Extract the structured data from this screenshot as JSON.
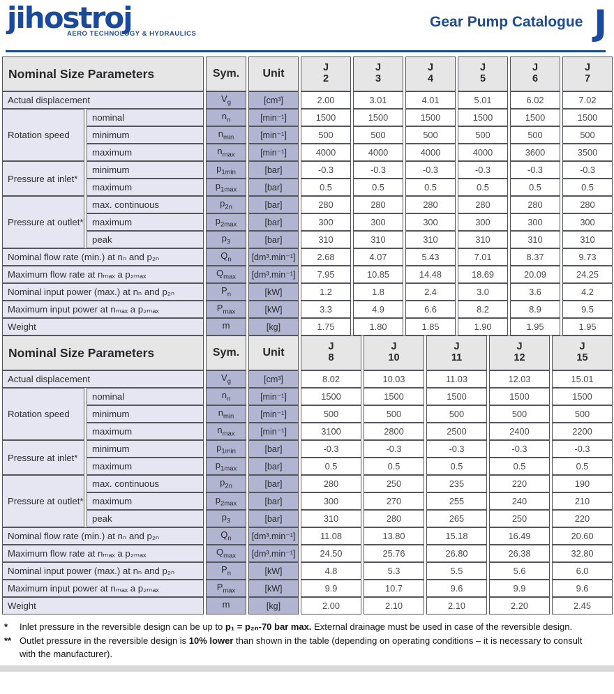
{
  "header": {
    "logo_text": "jihostroj",
    "logo_tagline": "AERO TECHNOLOGY & HYDRAULICS",
    "catalogue_title": "Gear Pump Catalogue",
    "series_letter": "J",
    "accent_color": "#1b4a9c"
  },
  "tables": [
    {
      "header": {
        "param": "Nominal Size Parameters",
        "sym": "Sym.",
        "unit": "Unit",
        "sizes": [
          {
            "l1": "J",
            "l2": "2"
          },
          {
            "l1": "J",
            "l2": "3"
          },
          {
            "l1": "J",
            "l2": "4"
          },
          {
            "l1": "J",
            "l2": "5"
          },
          {
            "l1": "J",
            "l2": "6"
          },
          {
            "l1": "J",
            "l2": "7"
          }
        ]
      },
      "rows": [
        {
          "label": "Actual displacement",
          "span": 2,
          "sym": {
            "base": "V",
            "sub": "g"
          },
          "unit": "[cm³]",
          "values": [
            "2.00",
            "3.01",
            "4.01",
            "5.01",
            "6.02",
            "7.02"
          ]
        },
        {
          "group": "Rotation speed",
          "rowspan": 3,
          "label": "nominal",
          "sym": {
            "base": "n",
            "sub": "n"
          },
          "unit": "[min⁻¹]",
          "values": [
            "1500",
            "1500",
            "1500",
            "1500",
            "1500",
            "1500"
          ]
        },
        {
          "label": "minimum",
          "sym": {
            "base": "n",
            "sub": "min"
          },
          "unit": "[min⁻¹]",
          "values": [
            "500",
            "500",
            "500",
            "500",
            "500",
            "500"
          ]
        },
        {
          "label": "maximum",
          "sym": {
            "base": "n",
            "sub": "max"
          },
          "unit": "[min⁻¹]",
          "values": [
            "4000",
            "4000",
            "4000",
            "4000",
            "3600",
            "3500"
          ]
        },
        {
          "group": "Pressure at inlet*",
          "rowspan": 2,
          "label": "minimum",
          "sym": {
            "base": "p",
            "sub": "1min"
          },
          "unit": "[bar]",
          "values": [
            "-0.3",
            "-0.3",
            "-0.3",
            "-0.3",
            "-0.3",
            "-0.3"
          ]
        },
        {
          "label": "maximum",
          "sym": {
            "base": "p",
            "sub": "1max"
          },
          "unit": "[bar]",
          "values": [
            "0.5",
            "0.5",
            "0.5",
            "0.5",
            "0.5",
            "0.5"
          ]
        },
        {
          "group": "Pressure at outlet**",
          "rowspan": 3,
          "label": "max. continuous",
          "sym": {
            "base": "p",
            "sub": "2n"
          },
          "unit": "[bar]",
          "values": [
            "280",
            "280",
            "280",
            "280",
            "280",
            "280"
          ]
        },
        {
          "label": "maximum",
          "sym": {
            "base": "p",
            "sub": "2max"
          },
          "unit": "[bar]",
          "values": [
            "300",
            "300",
            "300",
            "300",
            "300",
            "300"
          ]
        },
        {
          "label": "peak",
          "sym": {
            "base": "p",
            "sub": "3"
          },
          "unit": "[bar]",
          "values": [
            "310",
            "310",
            "310",
            "310",
            "310",
            "310"
          ]
        },
        {
          "label": "Nominal flow rate (min.) at nₙ and p₂ₙ",
          "span": 2,
          "sym": {
            "base": "Q",
            "sub": "n"
          },
          "unit": "[dm³.min⁻¹]",
          "values": [
            "2.68",
            "4.07",
            "5.43",
            "7.01",
            "8.37",
            "9.73"
          ]
        },
        {
          "label": "Maximum flow rate at nₘₐₓ a p₂ₘₐₓ",
          "span": 2,
          "sym": {
            "base": "Q",
            "sub": "max"
          },
          "unit": "[dm³.min⁻¹]",
          "values": [
            "7.95",
            "10.85",
            "14.48",
            "18.69",
            "20.09",
            "24.25"
          ]
        },
        {
          "label": "Nominal input power (max.) at nₙ and p₂ₙ",
          "span": 2,
          "sym": {
            "base": "P",
            "sub": "n"
          },
          "unit": "[kW]",
          "values": [
            "1.2",
            "1.8",
            "2.4",
            "3.0",
            "3.6",
            "4.2"
          ]
        },
        {
          "label": "Maximum input power at nₘₐₓ a p₂ₘₐₓ",
          "span": 2,
          "sym": {
            "base": "P",
            "sub": "max"
          },
          "unit": "[kW]",
          "values": [
            "3.3",
            "4.9",
            "6.6",
            "8.2",
            "8.9",
            "9.5"
          ]
        },
        {
          "label": "Weight",
          "span": 2,
          "sym": {
            "base": "m",
            "sub": ""
          },
          "unit": "[kg]",
          "values": [
            "1.75",
            "1.80",
            "1.85",
            "1.90",
            "1.95",
            "1.95"
          ]
        }
      ]
    },
    {
      "header": {
        "param": "Nominal Size Parameters",
        "sym": "Sym.",
        "unit": "Unit",
        "sizes": [
          {
            "l1": "J",
            "l2": "8"
          },
          {
            "l1": "J",
            "l2": "10"
          },
          {
            "l1": "J",
            "l2": "11"
          },
          {
            "l1": "J",
            "l2": "12"
          },
          {
            "l1": "J",
            "l2": "15"
          }
        ]
      },
      "rows": [
        {
          "label": "Actual displacement",
          "span": 2,
          "sym": {
            "base": "V",
            "sub": "g"
          },
          "unit": "[cm³]",
          "values": [
            "8.02",
            "10.03",
            "11.03",
            "12.03",
            "15.01"
          ]
        },
        {
          "group": "Rotation speed",
          "rowspan": 3,
          "label": "nominal",
          "sym": {
            "base": "n",
            "sub": "n"
          },
          "unit": "[min⁻¹]",
          "values": [
            "1500",
            "1500",
            "1500",
            "1500",
            "1500"
          ]
        },
        {
          "label": "minimum",
          "sym": {
            "base": "n",
            "sub": "min"
          },
          "unit": "[min⁻¹]",
          "values": [
            "500",
            "500",
            "500",
            "500",
            "500"
          ]
        },
        {
          "label": "maximum",
          "sym": {
            "base": "n",
            "sub": "max"
          },
          "unit": "[min⁻¹]",
          "values": [
            "3100",
            "2800",
            "2500",
            "2400",
            "2200"
          ]
        },
        {
          "group": "Pressure at inlet*",
          "rowspan": 2,
          "label": "minimum",
          "sym": {
            "base": "p",
            "sub": "1min"
          },
          "unit": "[bar]",
          "values": [
            "-0.3",
            "-0.3",
            "-0.3",
            "-0.3",
            "-0.3"
          ]
        },
        {
          "label": "maximum",
          "sym": {
            "base": "p",
            "sub": "1max"
          },
          "unit": "[bar]",
          "values": [
            "0.5",
            "0.5",
            "0.5",
            "0.5",
            "0.5"
          ]
        },
        {
          "group": "Pressure at outlet**",
          "rowspan": 3,
          "label": "max. continuous",
          "sym": {
            "base": "p",
            "sub": "2n"
          },
          "unit": "[bar]",
          "values": [
            "280",
            "250",
            "235",
            "220",
            "190"
          ]
        },
        {
          "label": "maximum",
          "sym": {
            "base": "p",
            "sub": "2max"
          },
          "unit": "[bar]",
          "values": [
            "300",
            "270",
            "255",
            "240",
            "210"
          ]
        },
        {
          "label": "peak",
          "sym": {
            "base": "p",
            "sub": "3"
          },
          "unit": "[bar]",
          "values": [
            "310",
            "280",
            "265",
            "250",
            "220"
          ]
        },
        {
          "label": "Nominal flow rate (min.) at nₙ and p₂ₙ",
          "span": 2,
          "sym": {
            "base": "Q",
            "sub": "n"
          },
          "unit": "[dm³.min⁻¹]",
          "values": [
            "11.08",
            "13.80",
            "15.18",
            "16.49",
            "20.60"
          ]
        },
        {
          "label": "Maximum flow rate at nₘₐₓ a p₂ₘₐₓ",
          "span": 2,
          "sym": {
            "base": "Q",
            "sub": "max"
          },
          "unit": "[dm³.min⁻¹]",
          "values": [
            "24.50",
            "25.76",
            "26.80",
            "26.38",
            "32.80"
          ]
        },
        {
          "label": "Nominal input power (max.) at nₙ and p₂ₙ",
          "span": 2,
          "sym": {
            "base": "P",
            "sub": "n"
          },
          "unit": "[kW]",
          "values": [
            "4.8",
            "5.3",
            "5.5",
            "5.6",
            "6.0"
          ]
        },
        {
          "label": "Maximum input power at nₘₐₓ a p₂ₘₐₓ",
          "span": 2,
          "sym": {
            "base": "P",
            "sub": "max"
          },
          "unit": "[kW]",
          "values": [
            "9.9",
            "10.7",
            "9.6",
            "9.9",
            "9.6"
          ]
        },
        {
          "label": "Weight",
          "span": 2,
          "sym": {
            "base": "m",
            "sub": ""
          },
          "unit": "[kg]",
          "values": [
            "2.00",
            "2.10",
            "2.10",
            "2.20",
            "2.45"
          ]
        }
      ]
    }
  ],
  "footnotes": [
    {
      "marker": "*",
      "parts": [
        {
          "t": "Inlet pressure in the reversible design can be up to "
        },
        {
          "t": "p₁ = p₂ₙ-70 bar max.",
          "b": true
        },
        {
          "t": " External drainage must be used in case of the reversible design."
        }
      ]
    },
    {
      "marker": "**",
      "parts": [
        {
          "t": "Outlet pressure in the reversible design is "
        },
        {
          "t": "10% lower",
          "b": true
        },
        {
          "t": " than shown in the table (depending on operating conditions – it is necessary to consult with the manufacturer)."
        }
      ]
    }
  ]
}
